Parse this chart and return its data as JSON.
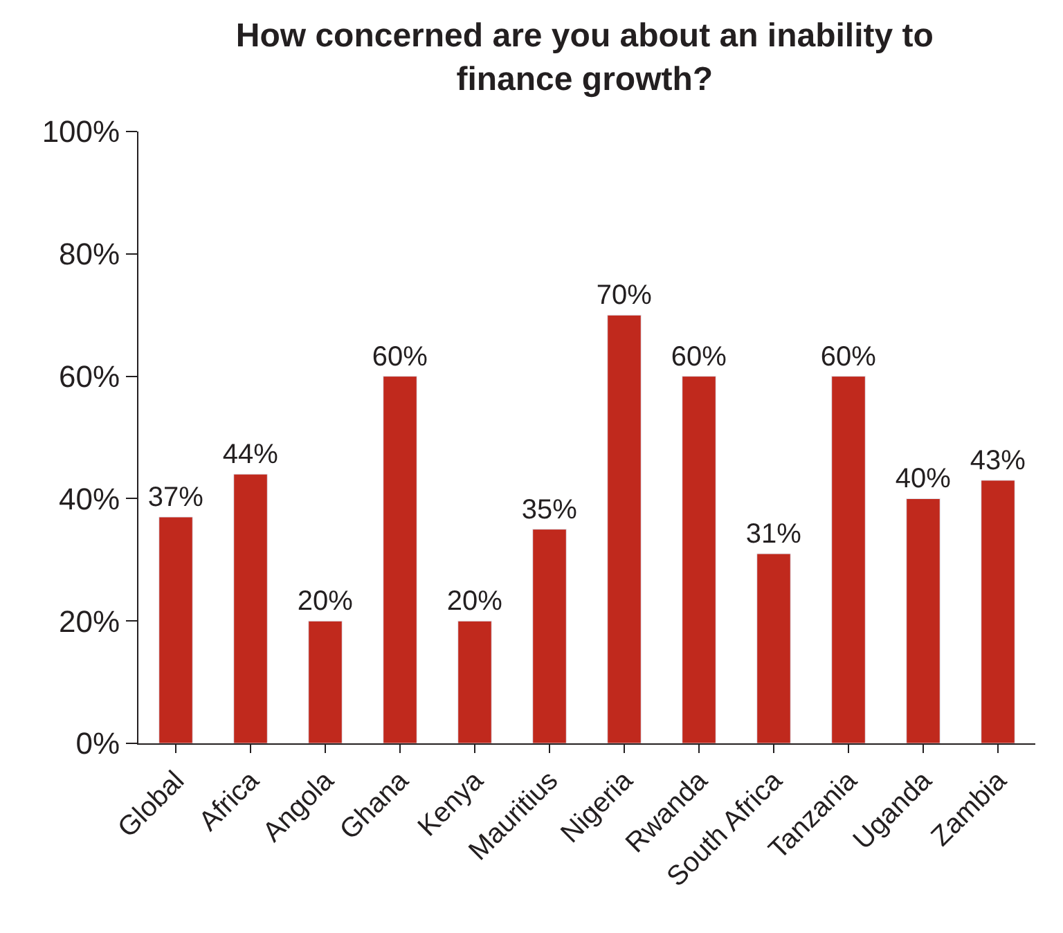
{
  "chart_data": {
    "type": "bar",
    "title": "How concerned are you about an inability to finance growth?",
    "categories": [
      "Global",
      "Africa",
      "Angola",
      "Ghana",
      "Kenya",
      "Mauritius",
      "Nigeria",
      "Rwanda",
      "South Africa",
      "Tanzania",
      "Uganda",
      "Zambia"
    ],
    "values": [
      37,
      44,
      20,
      60,
      20,
      35,
      70,
      60,
      31,
      60,
      40,
      43
    ],
    "value_labels": [
      "37%",
      "44%",
      "20%",
      "60%",
      "20%",
      "35%",
      "70%",
      "60%",
      "31%",
      "60%",
      "40%",
      "43%"
    ],
    "color": "#c0291d",
    "ylim": [
      0,
      100
    ],
    "yticks": [
      {
        "value": 0,
        "label": "0%"
      },
      {
        "value": 20,
        "label": "20%"
      },
      {
        "value": 40,
        "label": "40%"
      },
      {
        "value": 60,
        "label": "60%"
      },
      {
        "value": 80,
        "label": "80%"
      },
      {
        "value": 100,
        "label": "100%"
      }
    ],
    "legend": false
  }
}
